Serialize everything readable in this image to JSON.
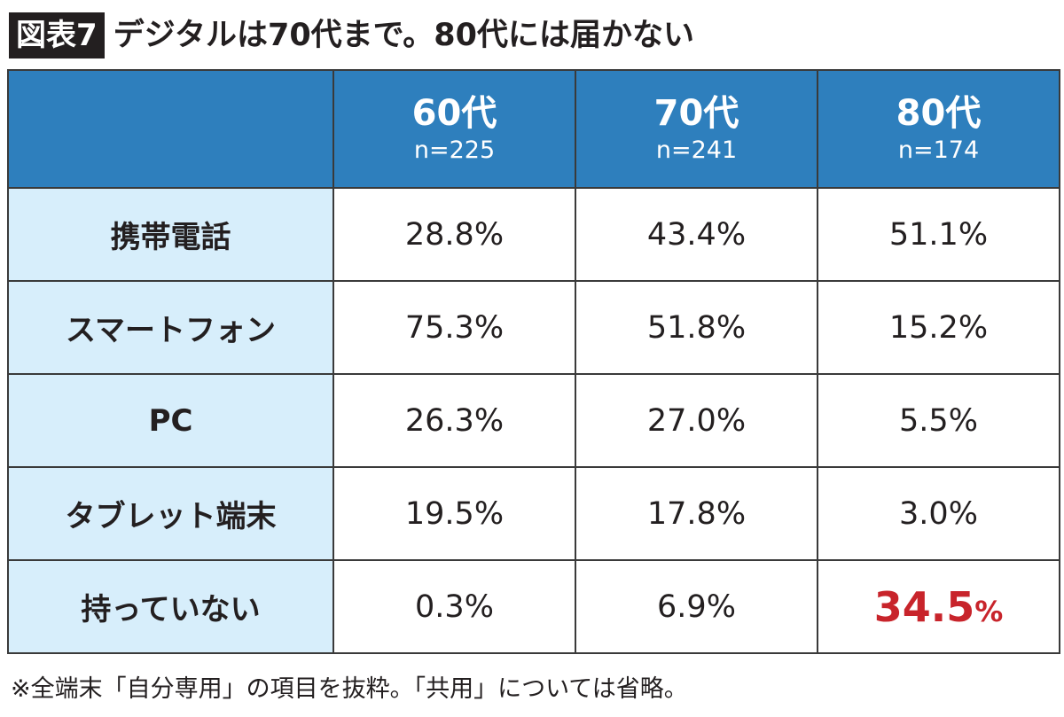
{
  "header": {
    "badge": "図表7",
    "title": "デジタルは70代まで。80代には届かない"
  },
  "chart_data": {
    "type": "table",
    "columns": [
      {
        "label": "60代",
        "n": "n=225"
      },
      {
        "label": "70代",
        "n": "n=241"
      },
      {
        "label": "80代",
        "n": "n=174"
      }
    ],
    "rows": [
      {
        "label": "携帯電話",
        "values": [
          28.8,
          43.4,
          51.1
        ]
      },
      {
        "label": "スマートフォン",
        "values": [
          75.3,
          51.8,
          15.2
        ]
      },
      {
        "label": "PC",
        "values": [
          26.3,
          27.0,
          5.5
        ]
      },
      {
        "label": "タブレット端末",
        "values": [
          19.5,
          17.8,
          3.0
        ]
      },
      {
        "label": "持っていない",
        "values": [
          0.3,
          6.9,
          34.5
        ]
      }
    ],
    "display": [
      [
        "28.8",
        "43.4",
        "51.1"
      ],
      [
        "75.3",
        "51.8",
        "15.2"
      ],
      [
        "26.3",
        "27.0",
        "5.5"
      ],
      [
        "19.5",
        "17.8",
        "3.0"
      ],
      [
        "0.3",
        "6.9",
        "34.5"
      ]
    ],
    "unit": "%",
    "highlight": {
      "row": 4,
      "col": 2,
      "color": "#c8242b"
    },
    "header_color": "#2e7fbd",
    "label_bg_color": "#d7eefb"
  },
  "footnote": "※全端末「自分専用」の項目を抜粋。「共用」については省略。"
}
